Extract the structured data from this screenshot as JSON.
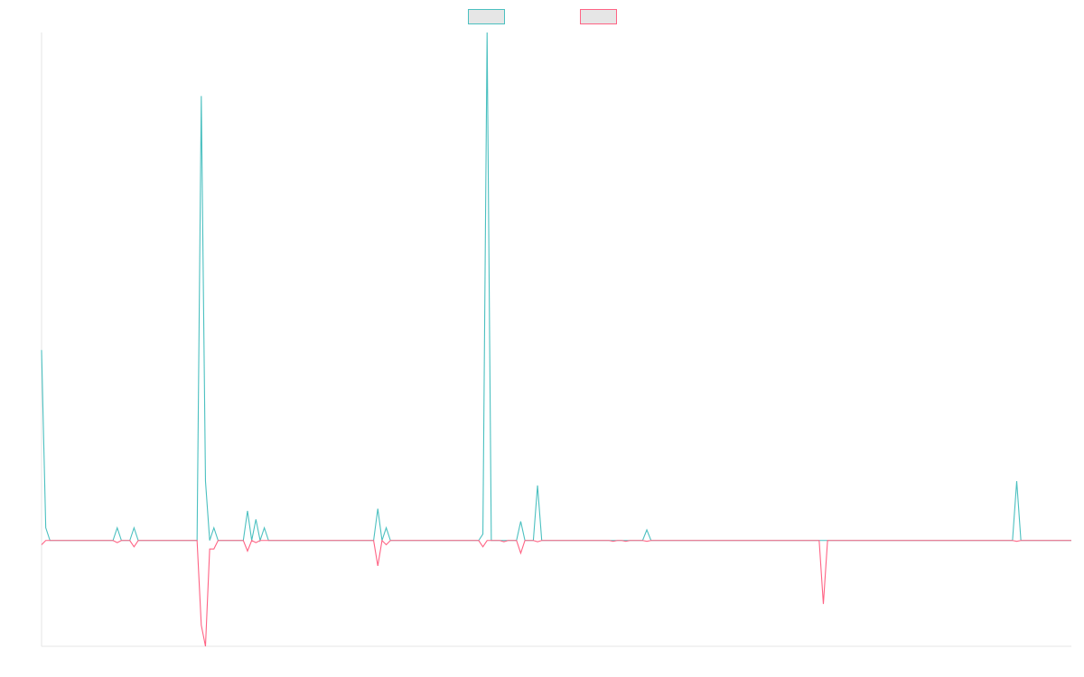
{
  "chart_data": {
    "type": "line",
    "title": "",
    "xlabel": "",
    "ylabel": "",
    "grid": false,
    "legend": {
      "placement": "top-center",
      "fill": "#e6e6e6"
    },
    "xlim": [
      0,
      245
    ],
    "ylim": [
      -25,
      120
    ],
    "baseline": 0,
    "series": [
      {
        "color": "#4bc0c0",
        "points": [
          [
            0,
            45
          ],
          [
            1,
            3
          ],
          [
            2,
            0
          ],
          [
            17,
            0
          ],
          [
            18,
            3
          ],
          [
            19,
            0
          ],
          [
            20,
            0
          ],
          [
            21,
            0
          ],
          [
            22,
            3
          ],
          [
            23,
            0
          ],
          [
            37,
            0
          ],
          [
            38,
            105
          ],
          [
            39,
            14
          ],
          [
            40,
            0
          ],
          [
            41,
            3
          ],
          [
            42,
            0
          ],
          [
            48,
            0
          ],
          [
            49,
            7
          ],
          [
            50,
            0
          ],
          [
            51,
            5
          ],
          [
            52,
            0
          ],
          [
            53,
            3
          ],
          [
            54,
            0
          ],
          [
            79,
            0
          ],
          [
            80,
            7.5
          ],
          [
            81,
            0
          ],
          [
            82,
            3
          ],
          [
            83,
            0
          ],
          [
            104,
            0
          ],
          [
            105,
            1.5
          ],
          [
            106,
            120
          ],
          [
            107,
            0
          ],
          [
            109,
            0
          ],
          [
            110,
            0
          ],
          [
            111,
            0
          ],
          [
            112,
            0
          ],
          [
            113,
            0
          ],
          [
            114,
            4.5
          ],
          [
            115,
            0
          ],
          [
            116,
            0
          ],
          [
            117,
            0
          ],
          [
            118,
            13
          ],
          [
            119,
            0
          ],
          [
            135,
            0
          ],
          [
            136,
            0
          ],
          [
            137,
            0
          ],
          [
            138,
            0
          ],
          [
            139,
            0
          ],
          [
            140,
            0
          ],
          [
            141,
            0
          ],
          [
            142,
            0
          ],
          [
            143,
            0
          ],
          [
            144,
            2.5
          ],
          [
            145,
            0
          ],
          [
            185,
            0
          ],
          [
            186,
            0
          ],
          [
            187,
            0
          ],
          [
            231,
            0
          ],
          [
            232,
            14
          ],
          [
            233,
            0
          ],
          [
            245,
            0
          ]
        ]
      },
      {
        "color": "#ff6384",
        "points": [
          [
            0,
            -1
          ],
          [
            1,
            0
          ],
          [
            2,
            0
          ],
          [
            17,
            0
          ],
          [
            18,
            -0.5
          ],
          [
            19,
            0
          ],
          [
            20,
            0
          ],
          [
            21,
            0
          ],
          [
            22,
            -1.5
          ],
          [
            23,
            0
          ],
          [
            37,
            0
          ],
          [
            38,
            -20
          ],
          [
            39,
            -25
          ],
          [
            40,
            -2
          ],
          [
            41,
            -2
          ],
          [
            42,
            0
          ],
          [
            48,
            0
          ],
          [
            49,
            -2.5
          ],
          [
            50,
            0
          ],
          [
            51,
            -0.5
          ],
          [
            52,
            0
          ],
          [
            53,
            0
          ],
          [
            54,
            0
          ],
          [
            79,
            0
          ],
          [
            80,
            -6
          ],
          [
            81,
            0
          ],
          [
            82,
            -1
          ],
          [
            83,
            0
          ],
          [
            104,
            0
          ],
          [
            105,
            -1.5
          ],
          [
            106,
            0
          ],
          [
            107,
            0
          ],
          [
            109,
            0
          ],
          [
            110,
            -0.3
          ],
          [
            111,
            0
          ],
          [
            112,
            0
          ],
          [
            113,
            0
          ],
          [
            114,
            -3
          ],
          [
            115,
            0
          ],
          [
            116,
            0
          ],
          [
            117,
            0
          ],
          [
            118,
            -0.3
          ],
          [
            119,
            0
          ],
          [
            135,
            0
          ],
          [
            136,
            -0.2
          ],
          [
            137,
            0
          ],
          [
            138,
            0
          ],
          [
            139,
            -0.2
          ],
          [
            140,
            0
          ],
          [
            141,
            0
          ],
          [
            142,
            0
          ],
          [
            143,
            0
          ],
          [
            144,
            -0.2
          ],
          [
            145,
            0
          ],
          [
            185,
            0
          ],
          [
            186,
            -15
          ],
          [
            187,
            0
          ],
          [
            231,
            0
          ],
          [
            232,
            -0.2
          ],
          [
            233,
            0
          ],
          [
            245,
            0
          ]
        ]
      }
    ]
  }
}
